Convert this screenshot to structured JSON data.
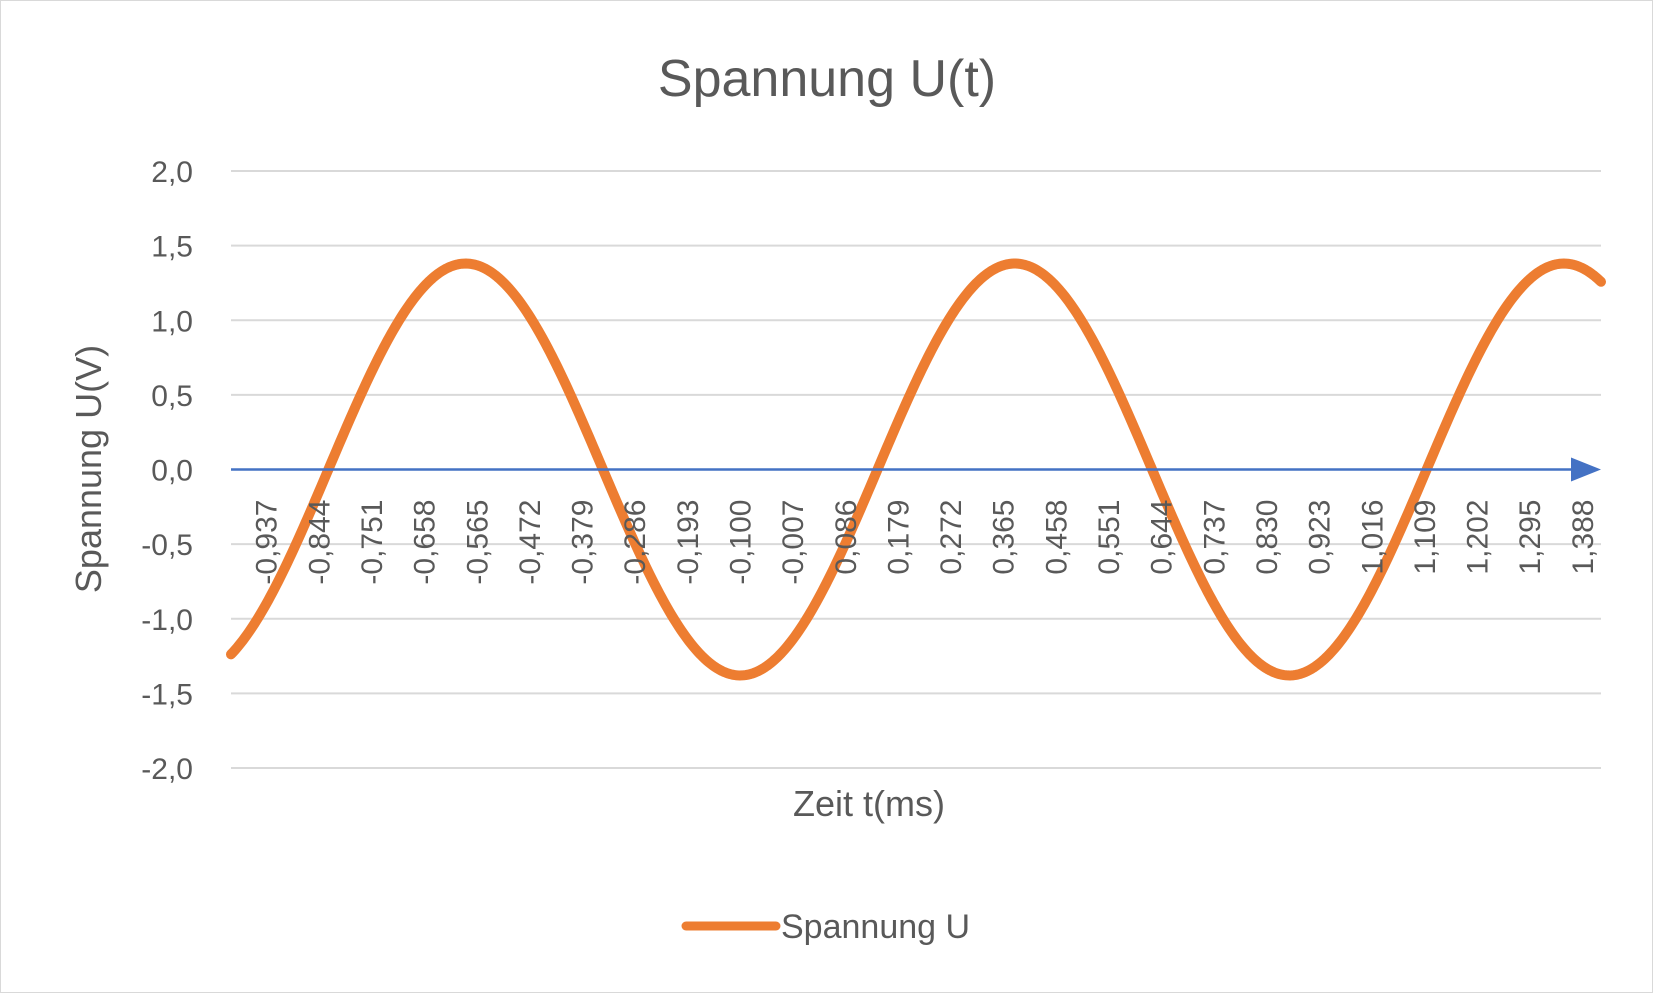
{
  "chart_data": {
    "type": "line",
    "title": "Spannung U(t)",
    "xlabel": "Zeit t(ms)",
    "ylabel": "Spannung U(V)",
    "ylim": [
      -2.0,
      2.0
    ],
    "yticks": [
      "2,0",
      "1,5",
      "1,0",
      "0,5",
      "0,0",
      "-0,5",
      "-1,0",
      "-1,5",
      "-2,0"
    ],
    "ytick_values": [
      2.0,
      1.5,
      1.0,
      0.5,
      0.0,
      -0.5,
      -1.0,
      -1.5,
      -2.0
    ],
    "xlim": [
      -1.0,
      1.42
    ],
    "xticks": [
      "-0,937",
      "-0,844",
      "-0,751",
      "-0,658",
      "-0,565",
      "-0,472",
      "-0,379",
      "-0,286",
      "-0,193",
      "-0,100",
      "-0,007",
      "0,086",
      "0,179",
      "0,272",
      "0,365",
      "0,458",
      "0,551",
      "0,644",
      "0,737",
      "0,830",
      "0,923",
      "1,016",
      "1,109",
      "1,202",
      "1,295",
      "1,388"
    ],
    "xtick_values": [
      -0.937,
      -0.844,
      -0.751,
      -0.658,
      -0.565,
      -0.472,
      -0.379,
      -0.286,
      -0.193,
      -0.1,
      -0.007,
      0.086,
      0.179,
      0.272,
      0.365,
      0.458,
      0.551,
      0.644,
      0.737,
      0.83,
      0.923,
      1.016,
      1.109,
      1.202,
      1.295,
      1.388
    ],
    "grid": true,
    "legend": "bottom",
    "series": [
      {
        "name": "Spannung U",
        "color": "#ed7d31",
        "amplitude": 1.38,
        "period_ms": 0.97,
        "phase_zero_crossing_ms": -0.828,
        "x": [
          -1.0,
          -0.828,
          -0.586,
          -0.343,
          -0.101,
          0.142,
          0.384,
          0.627,
          0.869,
          1.112,
          1.354,
          1.42
        ],
        "y": [
          -1.18,
          0.0,
          1.38,
          0.0,
          -1.38,
          0.0,
          1.38,
          0.0,
          -1.38,
          0.0,
          1.38,
          1.26
        ]
      }
    ]
  },
  "colors": {
    "series": "#ed7d31",
    "axis_zero": "#4472c4",
    "grid": "#d9d9d9",
    "text": "#595959"
  }
}
